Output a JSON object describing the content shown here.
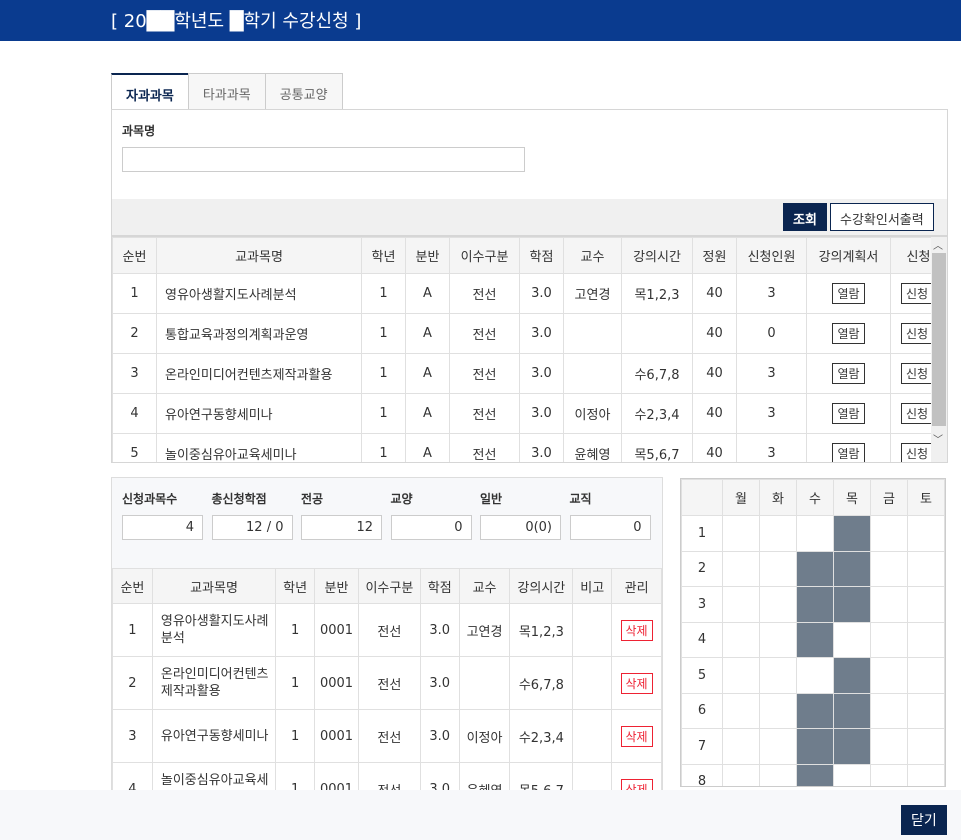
{
  "header": {
    "title": "[ 20██학년도 █학기 수강신청 ]"
  },
  "tabs": [
    {
      "label": "자과과목",
      "active": true
    },
    {
      "label": "타과과목"
    },
    {
      "label": "공통교양"
    }
  ],
  "search": {
    "label": "과목명",
    "value": ""
  },
  "buttons": {
    "search": "조회",
    "print": "수강확인서출력",
    "close": "닫기"
  },
  "course_table": {
    "headers": [
      "순번",
      "교과목명",
      "학년",
      "분반",
      "이수구분",
      "학점",
      "교수",
      "강의시간",
      "정원",
      "신청인원",
      "강의계획서",
      "신청"
    ],
    "rows": [
      [
        "1",
        "영유아생활지도사례분석",
        "1",
        "A",
        "전선",
        "3.0",
        "고연경",
        "목1,2,3",
        "40",
        "3",
        "열람",
        "신청"
      ],
      [
        "2",
        "통합교육과정의계획과운영",
        "1",
        "A",
        "전선",
        "3.0",
        "",
        "",
        "40",
        "0",
        "열람",
        "신청"
      ],
      [
        "3",
        "온라인미디어컨텐츠제작과활용",
        "1",
        "A",
        "전선",
        "3.0",
        "",
        "수6,7,8",
        "40",
        "3",
        "열람",
        "신청"
      ],
      [
        "4",
        "유아연구동향세미나",
        "1",
        "A",
        "전선",
        "3.0",
        "이정아",
        "수2,3,4",
        "40",
        "3",
        "열람",
        "신청"
      ],
      [
        "5",
        "놀이중심유아교육세미나",
        "1",
        "A",
        "전선",
        "3.0",
        "윤혜영",
        "목5,6,7",
        "40",
        "3",
        "열람",
        "신청"
      ]
    ]
  },
  "summary": [
    {
      "label": "신청과목수",
      "value": "4"
    },
    {
      "label": "총신청학점",
      "value": "12 / 0"
    },
    {
      "label": "전공",
      "value": "12"
    },
    {
      "label": "교양",
      "value": "0"
    },
    {
      "label": "일반",
      "value": "0(0)"
    },
    {
      "label": "교직",
      "value": "0"
    }
  ],
  "registered_table": {
    "headers": [
      "순번",
      "교과목명",
      "학년",
      "분반",
      "이수구분",
      "학점",
      "교수",
      "강의시간",
      "비고",
      "관리"
    ],
    "rows": [
      [
        "1",
        "영유아생활지도사례분석",
        "1",
        "0001",
        "전선",
        "3.0",
        "고연경",
        "목1,2,3",
        "",
        "삭제"
      ],
      [
        "2",
        "온라인미디어컨텐츠제작과활용",
        "1",
        "0001",
        "전선",
        "3.0",
        "",
        "수6,7,8",
        "",
        "삭제"
      ],
      [
        "3",
        "유아연구동향세미나",
        "1",
        "0001",
        "전선",
        "3.0",
        "이정아",
        "수2,3,4",
        "",
        "삭제"
      ],
      [
        "4",
        "놀이중심유아교육세미나",
        "1",
        "0001",
        "전선",
        "3.0",
        "윤혜영",
        "목5,6,7",
        "",
        "삭제"
      ]
    ]
  },
  "timetable": {
    "days": [
      "월",
      "화",
      "수",
      "목",
      "금",
      "토"
    ],
    "periods": [
      "1",
      "2",
      "3",
      "4",
      "5",
      "6",
      "7",
      "8"
    ],
    "filled": {
      "수": [
        2,
        3,
        4,
        6,
        7,
        8
      ],
      "목": [
        1,
        2,
        3,
        5,
        6,
        7
      ]
    },
    "fill_color": "#6f7d8c"
  }
}
